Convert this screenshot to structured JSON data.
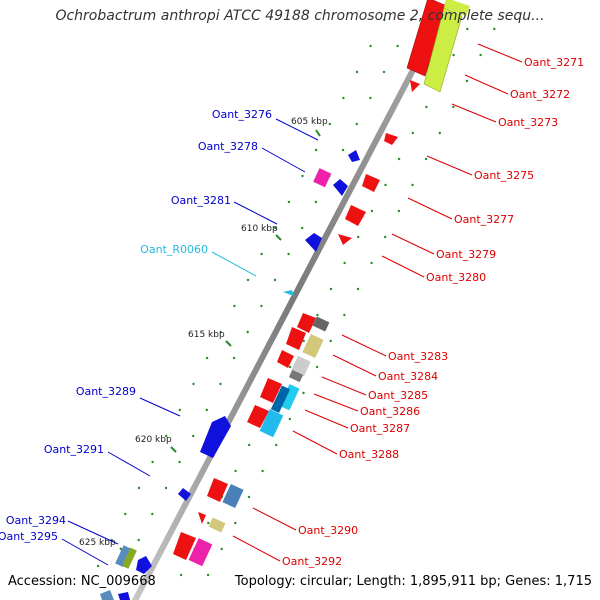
{
  "title": "Ochrobactrum anthropi ATCC 49188 chromosome 2, complete sequ...",
  "footer": {
    "accession": "Accession: NC_009668",
    "summary": "Topology: circular; Length: 1,895,911 bp; Genes: 1,715"
  },
  "colors": {
    "backbone": "#8c8c8c",
    "reverse_label": "#0000cc",
    "forward_label": "#dd0000",
    "rna_label": "#22bbdd",
    "tick": "#2a8a2a"
  },
  "ticks": [
    {
      "label": "605 kbp"
    },
    {
      "label": "610 kbp"
    },
    {
      "label": "615 kbp"
    },
    {
      "label": "620 kbp"
    },
    {
      "label": "625 kbp"
    }
  ],
  "reverse_genes": [
    {
      "name": "Oant_3276"
    },
    {
      "name": "Oant_3278"
    },
    {
      "name": "Oant_3281"
    },
    {
      "name": "Oant_R0060"
    },
    {
      "name": "Oant_3289"
    },
    {
      "name": "Oant_3291"
    },
    {
      "name": "Oant_3294"
    },
    {
      "name": "Oant_3295"
    }
  ],
  "forward_genes": [
    {
      "name": "Oant_3271"
    },
    {
      "name": "Oant_3272"
    },
    {
      "name": "Oant_3273"
    },
    {
      "name": "Oant_3275"
    },
    {
      "name": "Oant_3277"
    },
    {
      "name": "Oant_3279"
    },
    {
      "name": "Oant_3280"
    },
    {
      "name": "Oant_3283"
    },
    {
      "name": "Oant_3284"
    },
    {
      "name": "Oant_3285"
    },
    {
      "name": "Oant_3286"
    },
    {
      "name": "Oant_3287"
    },
    {
      "name": "Oant_3288"
    },
    {
      "name": "Oant_3290"
    },
    {
      "name": "Oant_3292"
    }
  ]
}
